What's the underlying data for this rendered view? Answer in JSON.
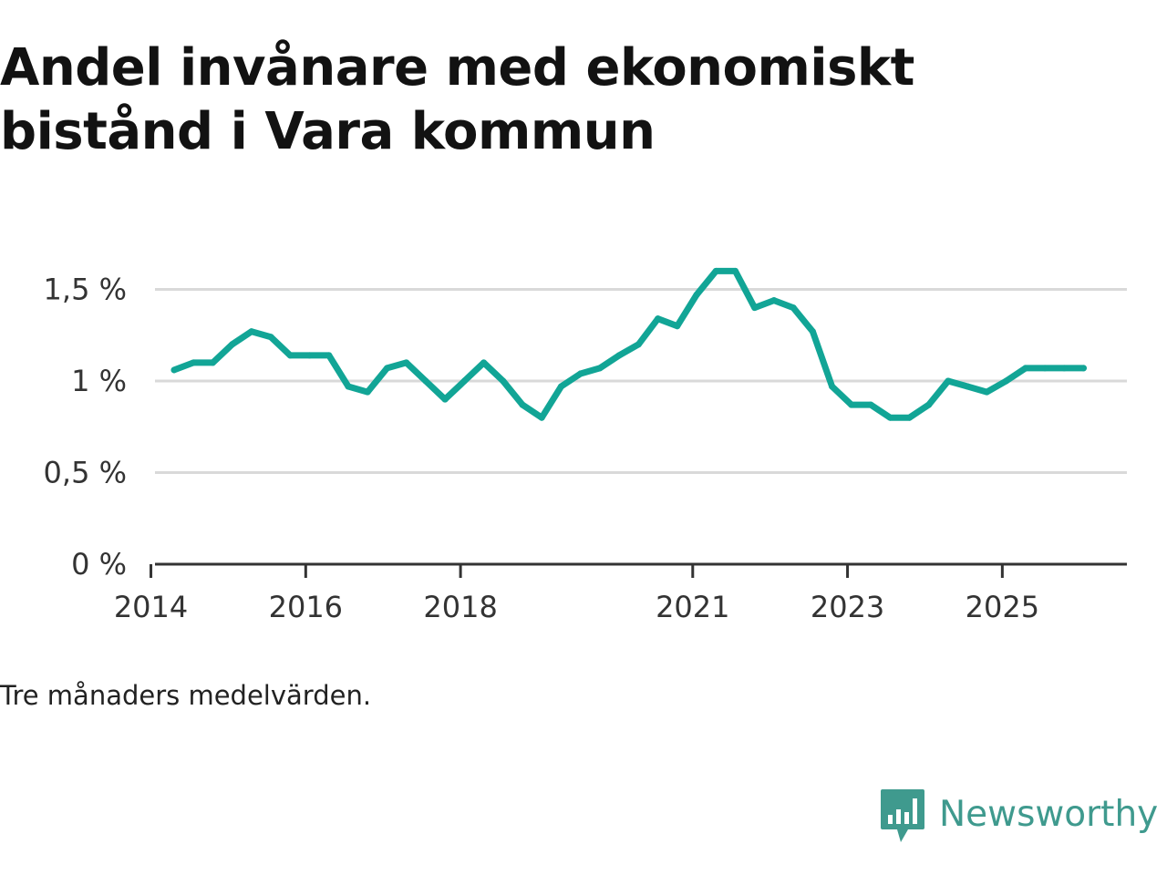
{
  "title": "Andel invånare med ekonomiskt bistånd i Vara kommun",
  "note": "Tre månaders medelvärden.",
  "brand": {
    "name": "Newsworthy",
    "icon": "newsworthy-logo-icon",
    "color": "#3f9a8e"
  },
  "chart_data": {
    "type": "line",
    "title": "Andel invånare med ekonomiskt bistånd i Vara kommun",
    "xlabel": "",
    "ylabel": "",
    "xlim": [
      2014,
      2026.5
    ],
    "ylim": [
      0,
      1.6
    ],
    "grid": true,
    "line_color": "#12a596",
    "y_ticks": [
      {
        "value": 0,
        "label": "0 %"
      },
      {
        "value": 0.5,
        "label": "0,5 %"
      },
      {
        "value": 1,
        "label": "1 %"
      },
      {
        "value": 1.5,
        "label": "1,5 %"
      }
    ],
    "x_ticks": [
      {
        "value": 2014,
        "label": "2014"
      },
      {
        "value": 2016,
        "label": "2016"
      },
      {
        "value": 2018,
        "label": "2018"
      },
      {
        "value": 2021,
        "label": "2021"
      },
      {
        "value": 2023,
        "label": "2023"
      },
      {
        "value": 2025,
        "label": "2025"
      }
    ],
    "series": [
      {
        "name": "Andel invånare med ekonomiskt bistånd",
        "x": [
          2014.3,
          2014.55,
          2014.8,
          2015.05,
          2015.3,
          2015.55,
          2015.8,
          2016.05,
          2016.3,
          2016.55,
          2016.8,
          2017.05,
          2017.3,
          2017.55,
          2017.8,
          2018.05,
          2018.3,
          2018.55,
          2018.8,
          2019.05,
          2019.3,
          2019.55,
          2019.8,
          2020.05,
          2020.3,
          2020.55,
          2020.8,
          2021.05,
          2021.3,
          2021.55,
          2021.8,
          2022.05,
          2022.3,
          2022.55,
          2022.8,
          2023.05,
          2023.3,
          2023.55,
          2023.8,
          2024.05,
          2024.3,
          2024.55,
          2024.8,
          2025.05,
          2025.3,
          2025.55,
          2025.8,
          2026.05
        ],
        "values": [
          1.06,
          1.1,
          1.1,
          1.2,
          1.27,
          1.24,
          1.14,
          1.14,
          1.14,
          0.97,
          0.94,
          1.07,
          1.1,
          1.0,
          0.9,
          1.0,
          1.1,
          1.0,
          0.87,
          0.8,
          0.97,
          1.04,
          1.07,
          1.14,
          1.2,
          1.34,
          1.3,
          1.47,
          1.6,
          1.6,
          1.4,
          1.44,
          1.4,
          1.27,
          0.97,
          0.87,
          0.87,
          0.8,
          0.8,
          0.87,
          1.0,
          0.97,
          0.94,
          1.0,
          1.07,
          1.07,
          1.07,
          1.07
        ]
      }
    ]
  }
}
